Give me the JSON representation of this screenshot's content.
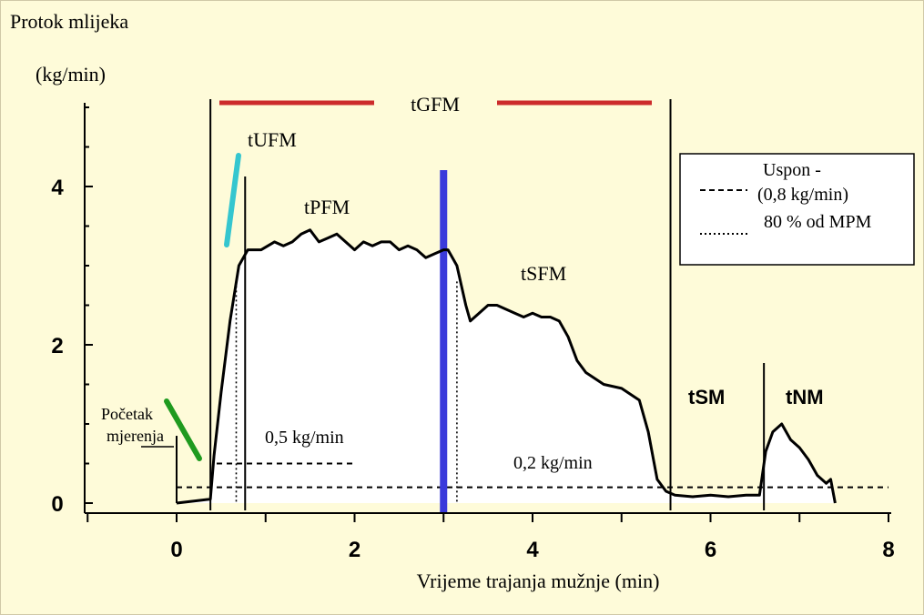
{
  "chart_data": {
    "type": "line",
    "ylabel_line1": "Protok mlijeka",
    "ylabel_line2": "(kg/min)",
    "xlabel": "Vrijeme trajanja mužnje (min)",
    "xlim": [
      -1,
      8
    ],
    "ylim": [
      0,
      5
    ],
    "x_ticks": [
      0,
      2,
      4,
      6,
      8
    ],
    "y_ticks": [
      0,
      2,
      4
    ],
    "series": [
      {
        "x": [
          0.0,
          0.38,
          0.42,
          0.5,
          0.6,
          0.7,
          0.8,
          0.95,
          1.1,
          1.2,
          1.3,
          1.4,
          1.5,
          1.6,
          1.7,
          1.8,
          1.9,
          2.0,
          2.1,
          2.2,
          2.3,
          2.4,
          2.5,
          2.6,
          2.7,
          2.8,
          2.9,
          3.0,
          3.05,
          3.15,
          3.25,
          3.3,
          3.4,
          3.5,
          3.6,
          3.7,
          3.8,
          3.9,
          4.0,
          4.1,
          4.2,
          4.3,
          4.4,
          4.5,
          4.6,
          4.8,
          5.0,
          5.2,
          5.3,
          5.4,
          5.5,
          5.6,
          5.8,
          6.0,
          6.2,
          6.4,
          6.55,
          6.62,
          6.7,
          6.8,
          6.9,
          7.0,
          7.1,
          7.2,
          7.3,
          7.35,
          7.4
        ],
        "y": [
          0.0,
          0.05,
          0.6,
          1.4,
          2.3,
          3.0,
          3.2,
          3.2,
          3.3,
          3.25,
          3.3,
          3.4,
          3.45,
          3.3,
          3.35,
          3.4,
          3.3,
          3.2,
          3.3,
          3.25,
          3.3,
          3.3,
          3.2,
          3.25,
          3.2,
          3.1,
          3.15,
          3.2,
          3.2,
          3.0,
          2.5,
          2.3,
          2.4,
          2.5,
          2.5,
          2.45,
          2.4,
          2.35,
          2.4,
          2.35,
          2.35,
          2.3,
          2.1,
          1.8,
          1.65,
          1.5,
          1.45,
          1.3,
          0.9,
          0.3,
          0.15,
          0.1,
          0.08,
          0.1,
          0.08,
          0.1,
          0.1,
          0.65,
          0.9,
          1.0,
          0.8,
          0.7,
          0.55,
          0.35,
          0.25,
          0.3,
          0.0
        ]
      }
    ],
    "thresholds": [
      {
        "label": "0,5 kg/min",
        "y": 0.5,
        "x_from": 0.45,
        "x_to": 2.0
      },
      {
        "label": "0,2 kg/min",
        "y": 0.2,
        "x_from": 0.0,
        "x_to": 8.0
      }
    ],
    "phase_markers": {
      "start_x": 0.0,
      "flow_start_x": 0.38,
      "plateau_start_x": 0.77,
      "peak_x": 3.0,
      "dotted_x": [
        0.67,
        3.15
      ],
      "main_end_x": 5.55,
      "re_start_x": 6.6
    },
    "annotations": {
      "tGFM": "tGFM",
      "tUFM": "tUFM",
      "tPFM": "tPFM",
      "tSFM": "tSFM",
      "tSM": "tSM",
      "tNM": "tNM",
      "start_line1": "Početak",
      "start_line2": "mjerenja",
      "thr_05": "0,5 kg/min",
      "thr_02": "0,2 kg/min"
    },
    "legend": {
      "position": "top-right",
      "item1_line1": "Uspon -",
      "item1_line2": "(0,8 kg/min)",
      "item2": "80 % od MPM"
    },
    "colors": {
      "background": "#fefbd9",
      "plot_fill": "#ffffff",
      "curve": "#000000",
      "tgfm_bar": "#cc2b2b",
      "peak_line": "#3a3adb",
      "rise_marker_green": "#1f9a1f",
      "rise_marker_cyan": "#35c6cf"
    }
  }
}
